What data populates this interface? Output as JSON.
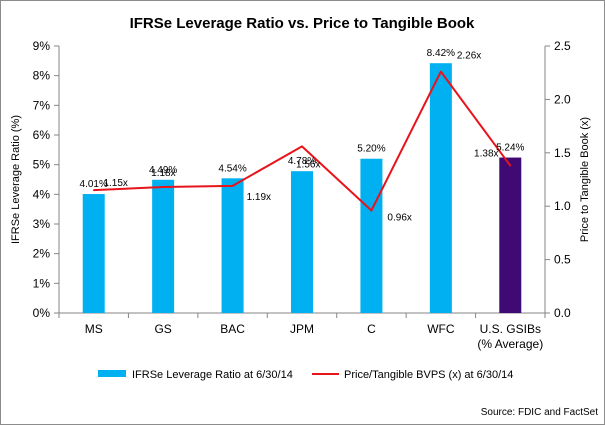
{
  "chart_data": {
    "type": "bar+line",
    "title": "IFRSe Leverage Ratio vs. Price to Tangible Book",
    "categories": [
      "MS",
      "GS",
      "BAC",
      "JPM",
      "C",
      "WFC",
      "U.S. GSIBs (% Average)"
    ],
    "category_lines": [
      [
        "MS"
      ],
      [
        "GS"
      ],
      [
        "BAC"
      ],
      [
        "JPM"
      ],
      [
        "C"
      ],
      [
        "WFC"
      ],
      [
        "U.S. GSIBs",
        "(% Average)"
      ]
    ],
    "series": [
      {
        "name": "IFRSe Leverage Ratio at 6/30/14",
        "type": "bar",
        "axis": "left",
        "values": [
          4.01,
          4.49,
          4.54,
          4.78,
          5.2,
          8.42,
          5.24
        ],
        "labels": [
          "4.01%",
          "4.49%",
          "4.54%",
          "4.78%",
          "5.20%",
          "8.42%",
          "5.24%"
        ],
        "color": "#00b0f0",
        "highlight_color": "#3f0a73",
        "highlight_index": 6
      },
      {
        "name": "Price/Tangible BVPS (x) at 6/30/14",
        "type": "line",
        "axis": "right",
        "values": [
          1.15,
          1.18,
          1.19,
          1.56,
          0.96,
          2.26,
          1.38
        ],
        "labels": [
          "1.15x",
          "1.18x",
          "1.19x",
          "1.56x",
          "0.96x",
          "2.26x",
          "1.38x"
        ],
        "color": "#e8141b"
      }
    ],
    "ylabel": "IFRSe Leverage Ratio (%)",
    "ylim": [
      0,
      9
    ],
    "yticks": [
      "0%",
      "1%",
      "2%",
      "3%",
      "4%",
      "5%",
      "6%",
      "7%",
      "8%",
      "9%"
    ],
    "y2label": "Price to Tangible Book (x)",
    "y2lim": [
      0,
      2.5
    ],
    "y2ticks": [
      "0.0",
      "0.5",
      "1.0",
      "1.5",
      "2.0",
      "2.5"
    ],
    "grid": false,
    "legend": "bottom",
    "source": "Source:  FDIC and FactSet"
  },
  "colors": {
    "bar": "#00b0f0",
    "bar_highlight": "#3f0a73",
    "line": "#e8141b",
    "axis": "#868686"
  }
}
